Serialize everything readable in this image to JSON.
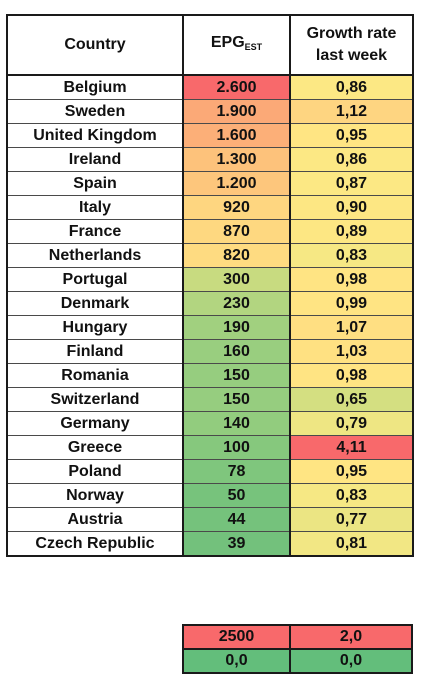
{
  "header": {
    "country": "Country",
    "epg_main": "EPG",
    "epg_sub": "EST",
    "growth_line1": "Growth rate",
    "growth_line2": "last week"
  },
  "rows": [
    {
      "country": "Belgium",
      "epg": "2.600",
      "growth": "0,86",
      "epg_color": "#f8696b",
      "growth_color": "#fce884"
    },
    {
      "country": "Sweden",
      "epg": "1.900",
      "growth": "1,12",
      "epg_color": "#fba977",
      "growth_color": "#fed581"
    },
    {
      "country": "United Kingdom",
      "epg": "1.600",
      "growth": "0,95",
      "epg_color": "#fcaf78",
      "growth_color": "#ffe583"
    },
    {
      "country": "Ireland",
      "epg": "1.300",
      "growth": "0,86",
      "epg_color": "#fdc27b",
      "growth_color": "#fce884"
    },
    {
      "country": "Spain",
      "epg": "1.200",
      "growth": "0,87",
      "epg_color": "#fdc67c",
      "growth_color": "#fce884"
    },
    {
      "country": "Italy",
      "epg": "920",
      "growth": "0,90",
      "epg_color": "#fed680",
      "growth_color": "#fde783"
    },
    {
      "country": "France",
      "epg": "870",
      "growth": "0,89",
      "epg_color": "#fed880",
      "growth_color": "#fde783"
    },
    {
      "country": "Netherlands",
      "epg": "820",
      "growth": "0,83",
      "epg_color": "#fedb81",
      "growth_color": "#f6e884"
    },
    {
      "country": "Portugal",
      "epg": "300",
      "growth": "0,98",
      "epg_color": "#c8db80",
      "growth_color": "#ffe483"
    },
    {
      "country": "Denmark",
      "epg": "230",
      "growth": "0,99",
      "epg_color": "#b2d580",
      "growth_color": "#ffe483"
    },
    {
      "country": "Hungary",
      "epg": "190",
      "growth": "1,07",
      "epg_color": "#a1d07f",
      "growth_color": "#ffdf82"
    },
    {
      "country": "Finland",
      "epg": "160",
      "growth": "1,03",
      "epg_color": "#99ce7f",
      "growth_color": "#ffe182"
    },
    {
      "country": "Romania",
      "epg": "150",
      "growth": "0,98",
      "epg_color": "#96cd7f",
      "growth_color": "#ffe483"
    },
    {
      "country": "Switzerland",
      "epg": "150",
      "growth": "0,65",
      "epg_color": "#96cd7f",
      "growth_color": "#d4df81"
    },
    {
      "country": "Germany",
      "epg": "140",
      "growth": "0,79",
      "epg_color": "#92cc7e",
      "growth_color": "#eee683"
    },
    {
      "country": "Greece",
      "epg": "100",
      "growth": "4,11",
      "epg_color": "#86c87d",
      "growth_color": "#f8696b"
    },
    {
      "country": "Poland",
      "epg": "78",
      "growth": "0,95",
      "epg_color": "#7fc67d",
      "growth_color": "#ffe583"
    },
    {
      "country": "Norway",
      "epg": "50",
      "growth": "0,83",
      "epg_color": "#77c37c",
      "growth_color": "#f6e884"
    },
    {
      "country": "Austria",
      "epg": "44",
      "growth": "0,77",
      "epg_color": "#75c27c",
      "growth_color": "#ebe583"
    },
    {
      "country": "Czech Republic",
      "epg": "39",
      "growth": "0,81",
      "epg_color": "#73c17c",
      "growth_color": "#f2e784"
    }
  ],
  "legend": {
    "epg_max": "2500",
    "growth_max": "2,0",
    "epg_min": "0,0",
    "growth_min": "0,0",
    "max_color": "#f8696b",
    "min_color": "#63be7b"
  }
}
